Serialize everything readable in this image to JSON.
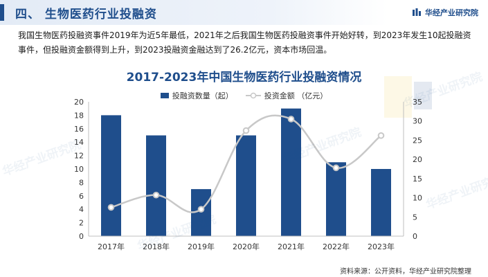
{
  "header": {
    "title": "四、 生物医药行业投融资",
    "brand": "华经产业研究院"
  },
  "intro": "我国生物医药投融资事件2019年为近5年最低，2021年之后我国生物医药投融资事件开始好转，到2023年发生10起投融资事件，但投融资金额得到上升，到2023投融资金融达到了26.2亿元，资本市场回温。",
  "watermarks": [
    "华经产业研究院",
    "华经产业研究院",
    "华经产业研究院",
    "华经产业研究院",
    "华经产业研究院"
  ],
  "colors": {
    "bar": "#1f4e8c",
    "line": "#c8c8c8",
    "title": "#1f4e8c"
  },
  "chart_data": {
    "type": "bar",
    "title": "2017-2023年中国生物医药行业投融资情况",
    "categories": [
      "2017年",
      "2018年",
      "2019年",
      "2020年",
      "2021年",
      "2022年",
      "2023年"
    ],
    "series": [
      {
        "name": "投融资数量（起）",
        "type": "bar",
        "axis": "left",
        "values": [
          18,
          15,
          7,
          15,
          19,
          11,
          10
        ]
      },
      {
        "name": "投资金额 （亿元）",
        "type": "line",
        "axis": "right",
        "values": [
          7.5,
          10.7,
          7.0,
          27.5,
          30.5,
          17.8,
          26.2
        ]
      }
    ],
    "y_left": {
      "min": 0,
      "max": 20,
      "step": 2,
      "ticks": [
        "0",
        "2",
        "4",
        "6",
        "8",
        "10",
        "12",
        "14",
        "16",
        "18",
        "20"
      ]
    },
    "y_right": {
      "min": 0,
      "max": 35,
      "step": 5,
      "ticks": [
        "0",
        "5",
        "10",
        "15",
        "20",
        "25",
        "30",
        "35"
      ]
    }
  },
  "source": "资料来源：公开资料，华经产业研究院整理"
}
